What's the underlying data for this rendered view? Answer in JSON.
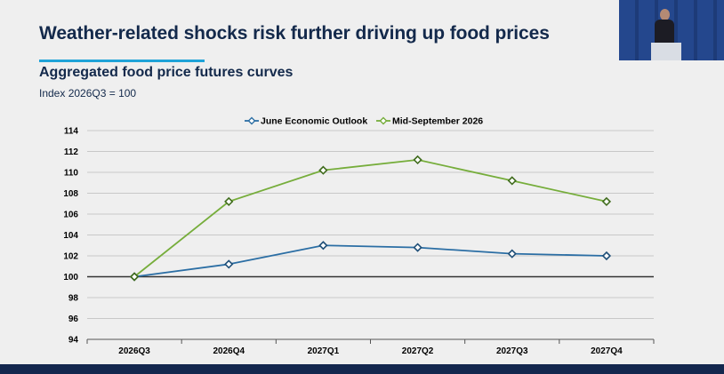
{
  "slide": {
    "title": "Weather-related shocks risk further driving up food prices"
  },
  "chart_data": {
    "type": "line",
    "title": "Aggregated food price futures curves",
    "subtitle": "Index 2026Q3 = 100",
    "categories": [
      "2026Q3",
      "2026Q4",
      "2027Q1",
      "2027Q2",
      "2027Q3",
      "2027Q4"
    ],
    "series": [
      {
        "name": "June Economic Outlook",
        "values": [
          100.0,
          101.2,
          103.0,
          102.8,
          102.2,
          102.0
        ],
        "color": "#2b6ea4"
      },
      {
        "name": "Mid-September 2026",
        "values": [
          100.0,
          107.2,
          110.2,
          111.2,
          109.2,
          107.2
        ],
        "color": "#76ad3b"
      }
    ],
    "reference_line": {
      "value": 100,
      "color": "#333333"
    },
    "ylim": [
      94,
      114
    ],
    "yticks": [
      94,
      96,
      98,
      100,
      102,
      104,
      106,
      108,
      110,
      112,
      114
    ],
    "xlabel": "",
    "ylabel": "",
    "grid": true,
    "legend_position": "top"
  },
  "colors": {
    "title": "#13294b",
    "accent": "#1fa3d8",
    "grid": "#c8c8c8",
    "footer": "#14274e"
  }
}
